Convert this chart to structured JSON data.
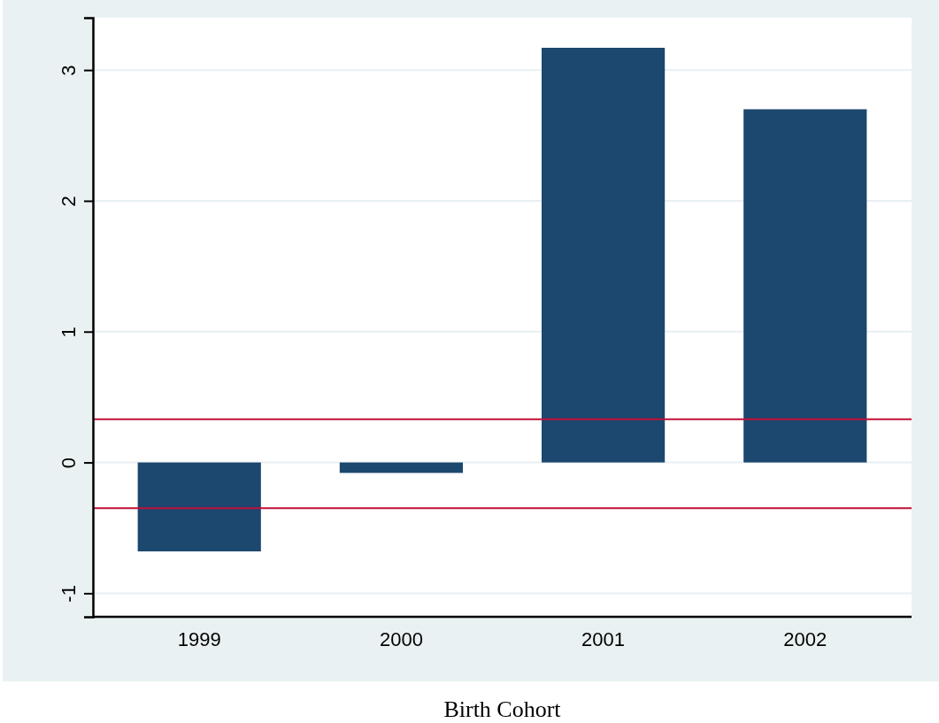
{
  "chart_data": {
    "type": "bar",
    "xlabel": "Birth Cohort",
    "categories": [
      "1999",
      "2000",
      "2001",
      "2002"
    ],
    "values": [
      -0.68,
      -0.08,
      3.17,
      2.7
    ],
    "color": "#1c476e",
    "ylim": [
      -1.18,
      3.4
    ],
    "yticks": [
      -1,
      0,
      1,
      2,
      3
    ],
    "grid": "y",
    "ref_lines": [
      {
        "axis": "y",
        "value": 0.33,
        "color": "#c0103a"
      },
      {
        "axis": "y",
        "value": -0.35,
        "color": "#c0103a"
      }
    ]
  }
}
